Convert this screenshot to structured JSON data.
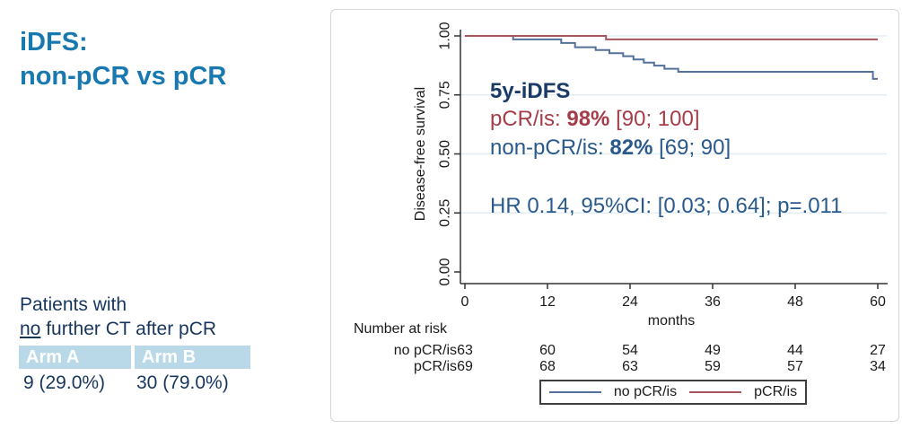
{
  "page": {
    "title_line1": "iDFS:",
    "title_line2": "non-pCR vs pCR"
  },
  "left_panel": {
    "note_line1": "Patients with",
    "note_underline": "no",
    "note_line2_rest": " further CT after pCR",
    "table": {
      "headers": [
        "Arm A",
        "Arm B"
      ],
      "values": [
        "9 (29.0%)",
        "30 (79.0%)"
      ]
    }
  },
  "annotations": {
    "heading": "5y-iDFS",
    "pcr": {
      "prefix": "pCR/is: ",
      "value": "98%",
      "ci": " [90; 100]",
      "color": "#a53c48"
    },
    "nonpcr": {
      "prefix": "non-pCR/is: ",
      "value": "82%",
      "ci": " [69; 90]",
      "color": "#2a5a8c"
    },
    "hr": "HR 0.14, 95%CI: [0.03; 0.64]; p=.011"
  },
  "chart_data": {
    "type": "line",
    "subtype": "kaplan-meier-step",
    "title": "",
    "xlabel": "months",
    "ylabel": "Disease-free survival",
    "xlim": [
      0,
      60
    ],
    "ylim": [
      0.0,
      1.0
    ],
    "xticks": [
      0,
      12,
      24,
      36,
      48,
      60
    ],
    "ytick_labels": [
      "0.00",
      "0.25",
      "0.50",
      "0.75",
      "1.00"
    ],
    "ytick_values": [
      0.0,
      0.25,
      0.5,
      0.75,
      1.0
    ],
    "grid": "horizontal-light",
    "gridline_color": "#e2edf4",
    "axis_color": "#333333",
    "series": [
      {
        "name": "no pCR/is",
        "color": "#54719c",
        "five_year_estimate": "82% [69; 90]",
        "points": [
          [
            0,
            1.0
          ],
          [
            7,
            1.0
          ],
          [
            7,
            0.985
          ],
          [
            14,
            0.985
          ],
          [
            14,
            0.97
          ],
          [
            16,
            0.97
          ],
          [
            16,
            0.952
          ],
          [
            19,
            0.952
          ],
          [
            19,
            0.94
          ],
          [
            21,
            0.94
          ],
          [
            21,
            0.927
          ],
          [
            23,
            0.927
          ],
          [
            23,
            0.914
          ],
          [
            24.5,
            0.914
          ],
          [
            24.5,
            0.9
          ],
          [
            26,
            0.9
          ],
          [
            26,
            0.887
          ],
          [
            27.5,
            0.887
          ],
          [
            27.5,
            0.874
          ],
          [
            29,
            0.874
          ],
          [
            29,
            0.861
          ],
          [
            31,
            0.861
          ],
          [
            31,
            0.848
          ],
          [
            59.3,
            0.848
          ],
          [
            59.3,
            0.818
          ],
          [
            60,
            0.818
          ]
        ]
      },
      {
        "name": "pCR/is",
        "color": "#a4555e",
        "five_year_estimate": "98% [90; 100]",
        "points": [
          [
            0,
            1.0
          ],
          [
            20.5,
            1.0
          ],
          [
            20.5,
            0.985
          ],
          [
            60,
            0.985
          ]
        ]
      }
    ],
    "at_risk": {
      "label": "Number at risk",
      "months": [
        0,
        12,
        24,
        36,
        48,
        60
      ],
      "rows": [
        {
          "name": "no pCR/is",
          "values": [
            63,
            60,
            54,
            49,
            44,
            27
          ]
        },
        {
          "name": "pCR/is",
          "values": [
            69,
            68,
            63,
            59,
            57,
            34
          ]
        }
      ]
    },
    "legend": {
      "position": "bottom-center-boxed",
      "items": [
        {
          "label": "no pCR/is",
          "color": "#54719c"
        },
        {
          "label": "pCR/is",
          "color": "#a4555e"
        }
      ]
    },
    "stats": {
      "hazard_ratio": 0.14,
      "ci95": [
        0.03,
        0.64
      ],
      "p_value": ".011"
    }
  }
}
